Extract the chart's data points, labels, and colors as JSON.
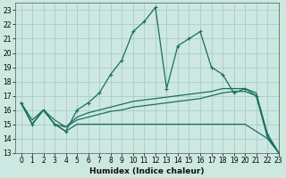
{
  "xlabel": "Humidex (Indice chaleur)",
  "bg_color": "#cce8e0",
  "grid_color": "#aacccc",
  "line_color": "#1a6e62",
  "xlim": [
    -0.5,
    23
  ],
  "ylim": [
    13,
    23.5
  ],
  "xticks": [
    0,
    1,
    2,
    3,
    4,
    5,
    6,
    7,
    8,
    9,
    10,
    11,
    12,
    13,
    14,
    15,
    16,
    17,
    18,
    19,
    20,
    21,
    22,
    23
  ],
  "yticks": [
    13,
    14,
    15,
    16,
    17,
    18,
    19,
    20,
    21,
    22,
    23
  ],
  "line_main_x": [
    0,
    1,
    2,
    3,
    4,
    5,
    6,
    7,
    8,
    9,
    10,
    11,
    12,
    13,
    14,
    15,
    16,
    17,
    18,
    19,
    20,
    21,
    22,
    23
  ],
  "line_main_y": [
    16.5,
    15.0,
    16.0,
    15.0,
    14.5,
    16.0,
    16.5,
    17.2,
    18.5,
    19.5,
    21.5,
    22.2,
    23.2,
    17.5,
    20.5,
    21.0,
    21.5,
    19.0,
    18.5,
    17.2,
    17.5,
    17.0,
    14.3,
    13.0
  ],
  "line_upper_x": [
    0,
    1,
    2,
    3,
    4,
    5,
    6,
    7,
    8,
    9,
    10,
    11,
    12,
    13,
    14,
    15,
    16,
    17,
    18,
    19,
    20,
    21,
    22,
    23
  ],
  "line_upper_y": [
    16.5,
    15.3,
    16.0,
    15.3,
    14.8,
    15.5,
    15.8,
    16.0,
    16.2,
    16.4,
    16.6,
    16.7,
    16.8,
    16.9,
    17.0,
    17.1,
    17.2,
    17.3,
    17.5,
    17.5,
    17.5,
    17.2,
    14.3,
    13.0
  ],
  "line_mid_x": [
    0,
    1,
    2,
    3,
    4,
    5,
    6,
    7,
    8,
    9,
    10,
    11,
    12,
    13,
    14,
    15,
    16,
    17,
    18,
    19,
    20,
    21,
    22,
    23
  ],
  "line_mid_y": [
    16.5,
    15.0,
    16.0,
    15.0,
    14.8,
    15.3,
    15.5,
    15.7,
    15.9,
    16.0,
    16.2,
    16.3,
    16.4,
    16.5,
    16.6,
    16.7,
    16.8,
    17.0,
    17.2,
    17.3,
    17.3,
    17.0,
    14.1,
    13.0
  ],
  "line_lower_x": [
    0,
    1,
    2,
    3,
    4,
    5,
    6,
    7,
    8,
    9,
    10,
    11,
    12,
    13,
    14,
    15,
    16,
    17,
    18,
    19,
    20,
    21,
    22,
    23
  ],
  "line_lower_y": [
    16.5,
    15.0,
    16.0,
    15.0,
    14.5,
    15.0,
    15.0,
    15.0,
    15.0,
    15.0,
    15.0,
    15.0,
    15.0,
    15.0,
    15.0,
    15.0,
    15.0,
    15.0,
    15.0,
    15.0,
    15.0,
    14.5,
    14.0,
    13.0
  ]
}
